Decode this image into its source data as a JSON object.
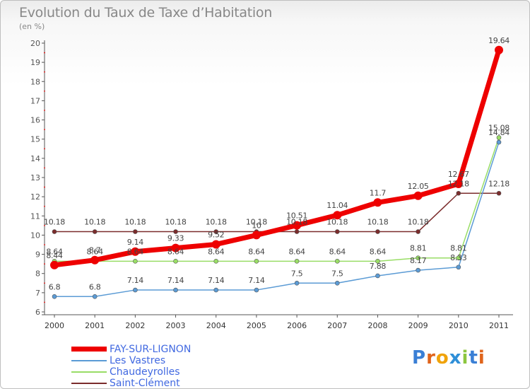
{
  "title": "Evolution du Taux de Taxe d’Habitation",
  "subtitle": "(en %)",
  "brand": {
    "letters": [
      "P",
      "r",
      "o",
      "x",
      "i",
      "t",
      "i"
    ],
    "colors": [
      "#3a7fd5",
      "#e0641b",
      "#f0a30a",
      "#2f8fd8",
      "#8cc63f",
      "#3a7fd5",
      "#e0641b"
    ]
  },
  "chart_data": {
    "type": "line",
    "title": "Evolution du Taux de Taxe d’Habitation",
    "ylabel": "(en %)",
    "x": [
      "2000",
      "2001",
      "2002",
      "2003",
      "2004",
      "2005",
      "2006",
      "2007",
      "2008",
      "2009",
      "2010",
      "2011"
    ],
    "ylim": [
      6,
      20
    ],
    "yticks": [
      6,
      7,
      8,
      9,
      10,
      11,
      12,
      13,
      14,
      15,
      16,
      17,
      18,
      19,
      20
    ],
    "grid": false,
    "legend_position": "bottom-left",
    "series": [
      {
        "name": "FAY-SUR-LIGNON",
        "color": "#ee0000",
        "values": [
          8.44,
          8.7,
          9.14,
          9.33,
          9.52,
          10.0,
          10.51,
          11.04,
          11.7,
          12.05,
          12.67,
          19.64
        ],
        "labels": [
          "8.44",
          "8.7",
          "9.14",
          "9.33",
          "9.52",
          "10",
          "10.51",
          "11.04",
          "11.7",
          "12.05",
          "12.67",
          "19.64"
        ]
      },
      {
        "name": "Les Vastres",
        "color": "#5b9bd5",
        "values": [
          6.8,
          6.8,
          7.14,
          7.14,
          7.14,
          7.14,
          7.5,
          7.5,
          7.88,
          8.17,
          8.33,
          14.84
        ],
        "labels": [
          "6.8",
          "6.8",
          "7.14",
          "7.14",
          "7.14",
          "7.14",
          "7.5",
          "7.5",
          "7.88",
          "8.17",
          "8.33",
          "14.84"
        ]
      },
      {
        "name": "Chaudeyrolles",
        "color": "#99dd66",
        "values": [
          8.64,
          8.64,
          8.64,
          8.64,
          8.64,
          8.64,
          8.64,
          8.64,
          8.64,
          8.81,
          8.81,
          15.08
        ],
        "labels": [
          "8.64",
          "8.64",
          "8.64",
          "8.64",
          "8.64",
          "8.64",
          "8.64",
          "8.64",
          "8.64",
          "8.81",
          "8.81",
          "15.08"
        ]
      },
      {
        "name": "Saint-Clément",
        "color": "#7b2c2c",
        "values": [
          10.18,
          10.18,
          10.18,
          10.18,
          10.18,
          10.18,
          10.18,
          10.18,
          10.18,
          10.18,
          12.18,
          12.18
        ],
        "labels": [
          "10.18",
          "10.18",
          "10.18",
          "10.18",
          "10.18",
          "10.18",
          "10.18",
          "10.18",
          "10.18",
          "10.18",
          "12.18",
          "12.18"
        ]
      }
    ]
  }
}
